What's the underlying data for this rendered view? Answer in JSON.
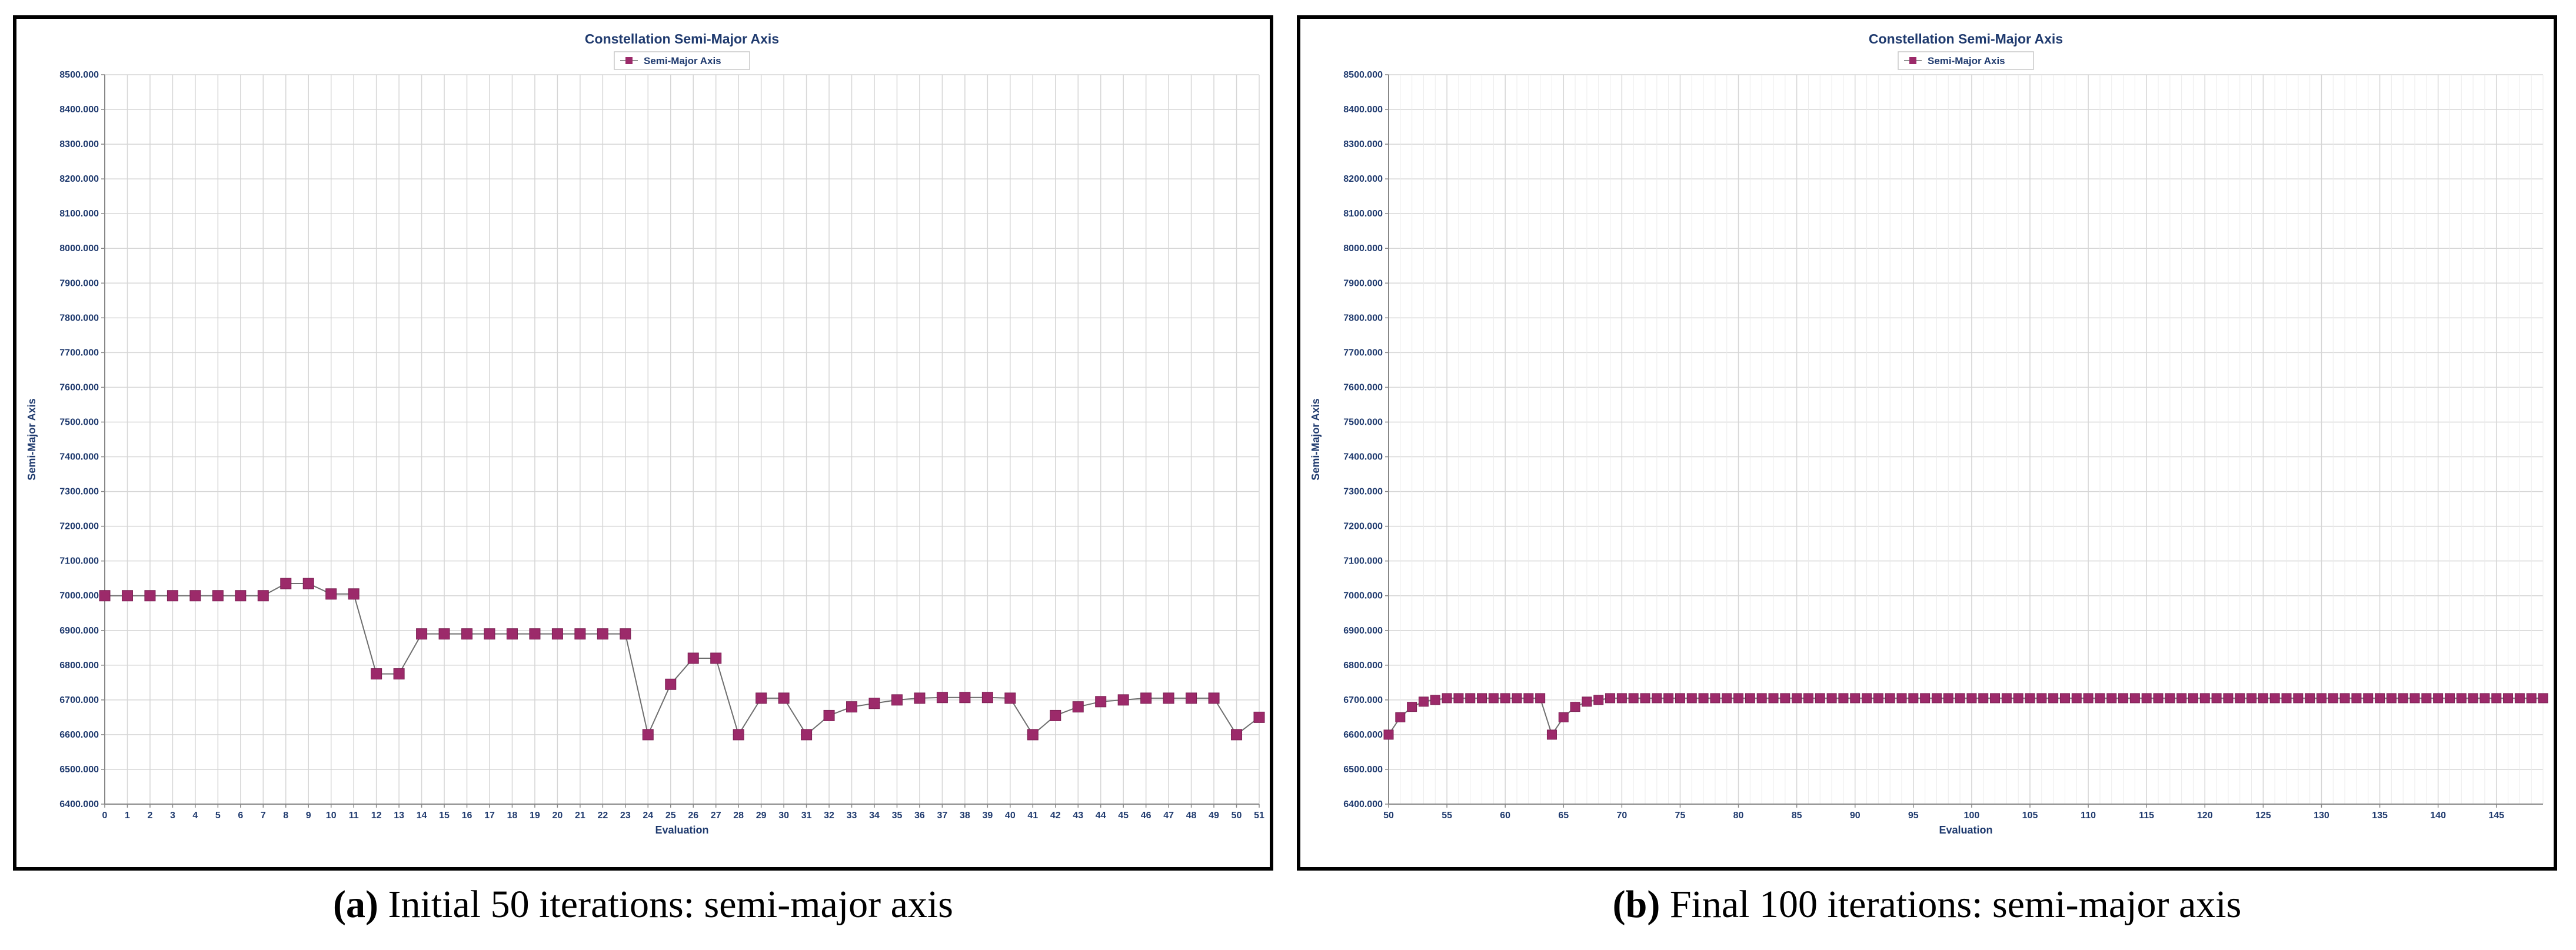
{
  "colors": {
    "series": "#9c2a6a",
    "series_line": "#6e6e6e",
    "grid": "#d6d6d6",
    "text": "#1f3a6e"
  },
  "captions": [
    {
      "label": "(a)",
      "text": "Initial 50 iterations: semi-major axis"
    },
    {
      "label": "(b)",
      "text": "Final 100 iterations: semi-major axis"
    }
  ],
  "chart_data": [
    {
      "type": "line",
      "title": "Constellation Semi-Major Axis",
      "xlabel": "Evaluation",
      "ylabel": "Semi-Major Axis",
      "legend": {
        "entries": [
          "Semi-Major Axis"
        ],
        "position": "top-center"
      },
      "grid": true,
      "xlim": [
        0,
        51
      ],
      "ylim": [
        6400,
        8500
      ],
      "x_ticks": [
        0,
        1,
        2,
        3,
        4,
        5,
        6,
        7,
        8,
        9,
        10,
        11,
        12,
        13,
        14,
        15,
        16,
        17,
        18,
        19,
        20,
        21,
        22,
        23,
        24,
        25,
        26,
        27,
        28,
        29,
        30,
        31,
        32,
        33,
        34,
        35,
        36,
        37,
        38,
        39,
        40,
        41,
        42,
        43,
        44,
        45,
        46,
        47,
        48,
        49,
        50,
        51
      ],
      "x_tick_labels": [
        "0",
        "1",
        "2",
        "3",
        "4",
        "5",
        "6",
        "7",
        "8",
        "9",
        "10",
        "11",
        "12",
        "13",
        "14",
        "15",
        "16",
        "17",
        "18",
        "19",
        "20",
        "21",
        "22",
        "23",
        "24",
        "25",
        "26",
        "27",
        "28",
        "29",
        "30",
        "31",
        "32",
        "33",
        "34",
        "35",
        "36",
        "37",
        "38",
        "39",
        "40",
        "41",
        "42",
        "43",
        "44",
        "45",
        "46",
        "47",
        "48",
        "49",
        "50",
        "51"
      ],
      "y_ticks": [
        6400,
        6500,
        6600,
        6700,
        6800,
        6900,
        7000,
        7100,
        7200,
        7300,
        7400,
        7500,
        7600,
        7700,
        7800,
        7900,
        8000,
        8100,
        8200,
        8300,
        8400,
        8500
      ],
      "y_tick_labels": [
        "6400.000",
        "6500.000",
        "6600.000",
        "6700.000",
        "6800.000",
        "6900.000",
        "7000.000",
        "7100.000",
        "7200.000",
        "7300.000",
        "7400.000",
        "7500.000",
        "7600.000",
        "7700.000",
        "7800.000",
        "7900.000",
        "8000.000",
        "8100.000",
        "8200.000",
        "8300.000",
        "8400.000",
        "8500.000"
      ],
      "series": [
        {
          "name": "Semi-Major Axis",
          "x": [
            0,
            1,
            2,
            3,
            4,
            5,
            6,
            7,
            8,
            9,
            10,
            11,
            12,
            13,
            14,
            15,
            16,
            17,
            18,
            19,
            20,
            21,
            22,
            23,
            24,
            25,
            26,
            27,
            28,
            29,
            30,
            31,
            32,
            33,
            34,
            35,
            36,
            37,
            38,
            39,
            40,
            41,
            42,
            43,
            44,
            45,
            46,
            47,
            48,
            49,
            50,
            51
          ],
          "values": [
            7000,
            7000,
            7000,
            7000,
            7000,
            7000,
            7000,
            7000,
            7035,
            7035,
            7005,
            7005,
            6775,
            6775,
            6890,
            6890,
            6890,
            6890,
            6890,
            6890,
            6890,
            6890,
            6890,
            6890,
            6600,
            6745,
            6820,
            6820,
            6600,
            6705,
            6705,
            6600,
            6655,
            6680,
            6690,
            6700,
            6705,
            6707,
            6707,
            6707,
            6705,
            6600,
            6655,
            6680,
            6695,
            6700,
            6705,
            6705,
            6705,
            6705,
            6600,
            6650
          ]
        }
      ]
    },
    {
      "type": "line",
      "title": "Constellation Semi-Major Axis",
      "xlabel": "Evaluation",
      "ylabel": "Semi-Major Axis",
      "legend": {
        "entries": [
          "Semi-Major Axis"
        ],
        "position": "top-center"
      },
      "grid": true,
      "xlim": [
        50,
        149
      ],
      "ylim": [
        6400,
        8500
      ],
      "x_ticks": [
        50,
        55,
        60,
        65,
        70,
        75,
        80,
        85,
        90,
        95,
        100,
        105,
        110,
        115,
        120,
        125,
        130,
        135,
        140,
        145
      ],
      "x_tick_labels": [
        "50",
        "55",
        "60",
        "65",
        "70",
        "75",
        "80",
        "85",
        "90",
        "95",
        "100",
        "105",
        "110",
        "115",
        "120",
        "125",
        "130",
        "135",
        "140",
        "145"
      ],
      "y_ticks": [
        6400,
        6500,
        6600,
        6700,
        6800,
        6900,
        7000,
        7100,
        7200,
        7300,
        7400,
        7500,
        7600,
        7700,
        7800,
        7900,
        8000,
        8100,
        8200,
        8300,
        8400,
        8500
      ],
      "y_tick_labels": [
        "6400.000",
        "6500.000",
        "6600.000",
        "6700.000",
        "6800.000",
        "6900.000",
        "7000.000",
        "7100.000",
        "7200.000",
        "7300.000",
        "7400.000",
        "7500.000",
        "7600.000",
        "7700.000",
        "7800.000",
        "7900.000",
        "8000.000",
        "8100.000",
        "8200.000",
        "8300.000",
        "8400.000",
        "8500.000"
      ],
      "series": [
        {
          "name": "Semi-Major Axis",
          "x": [
            50,
            51,
            52,
            53,
            54,
            55,
            56,
            57,
            58,
            59,
            60,
            61,
            62,
            63,
            64,
            65,
            66,
            67,
            68,
            69,
            70,
            71,
            72,
            73,
            74,
            75,
            76,
            77,
            78,
            79,
            80,
            81,
            82,
            83,
            84,
            85,
            86,
            87,
            88,
            89,
            90,
            91,
            92,
            93,
            94,
            95,
            96,
            97,
            98,
            99,
            100,
            101,
            102,
            103,
            104,
            105,
            106,
            107,
            108,
            109,
            110,
            111,
            112,
            113,
            114,
            115,
            116,
            117,
            118,
            119,
            120,
            121,
            122,
            123,
            124,
            125,
            126,
            127,
            128,
            129,
            130,
            131,
            132,
            133,
            134,
            135,
            136,
            137,
            138,
            139,
            140,
            141,
            142,
            143,
            144,
            145,
            146,
            147,
            148,
            149
          ],
          "values": [
            6600,
            6650,
            6680,
            6695,
            6700,
            6705,
            6705,
            6705,
            6705,
            6705,
            6705,
            6705,
            6705,
            6705,
            6600,
            6650,
            6680,
            6695,
            6700,
            6705,
            6705,
            6705,
            6705,
            6705,
            6705,
            6705,
            6705,
            6705,
            6705,
            6705,
            6705,
            6705,
            6705,
            6705,
            6705,
            6705,
            6705,
            6705,
            6705,
            6705,
            6705,
            6705,
            6705,
            6705,
            6705,
            6705,
            6705,
            6705,
            6705,
            6705,
            6705,
            6705,
            6705,
            6705,
            6705,
            6705,
            6705,
            6705,
            6705,
            6705,
            6705,
            6705,
            6705,
            6705,
            6705,
            6705,
            6705,
            6705,
            6705,
            6705,
            6705,
            6705,
            6705,
            6705,
            6705,
            6705,
            6705,
            6705,
            6705,
            6705,
            6705,
            6705,
            6705,
            6705,
            6705,
            6705,
            6705,
            6705,
            6705,
            6705,
            6705,
            6705,
            6705,
            6705,
            6705,
            6705,
            6705,
            6705,
            6705,
            6705
          ]
        }
      ]
    }
  ]
}
